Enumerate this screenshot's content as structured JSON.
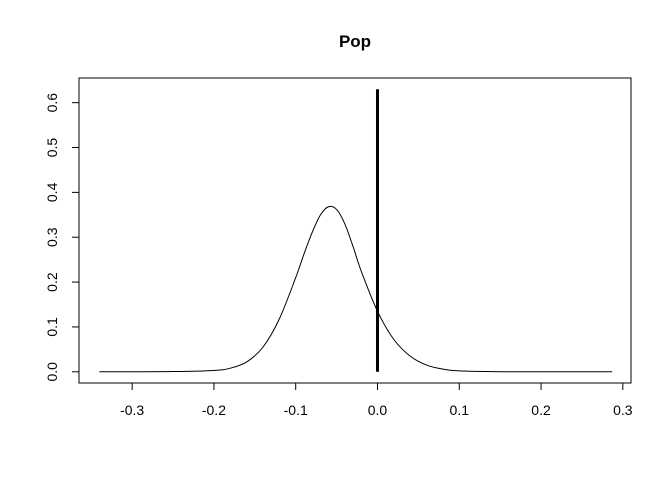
{
  "chart_data": {
    "type": "line",
    "title": "Pop",
    "xlabel": "",
    "ylabel": "",
    "xlim": [
      -0.365,
      0.31
    ],
    "ylim": [
      -0.025,
      0.655
    ],
    "x_ticks": [
      -0.3,
      -0.2,
      -0.1,
      0.0,
      0.1,
      0.2,
      0.3
    ],
    "x_tick_labels": [
      "-0.3",
      "-0.2",
      "-0.1",
      "0.0",
      "0.1",
      "0.2",
      "0.3"
    ],
    "y_ticks": [
      0.0,
      0.1,
      0.2,
      0.3,
      0.4,
      0.5,
      0.6
    ],
    "y_tick_labels": [
      "0.0",
      "0.1",
      "0.2",
      "0.3",
      "0.4",
      "0.5",
      "0.6"
    ],
    "grid": false,
    "series": [
      {
        "style": "density-curve",
        "color": "#000000",
        "x": [
          -0.34,
          -0.3,
          -0.25,
          -0.2,
          -0.18,
          -0.16,
          -0.14,
          -0.12,
          -0.1,
          -0.09,
          -0.08,
          -0.07,
          -0.06,
          -0.05,
          -0.04,
          -0.03,
          -0.02,
          0.0,
          0.02,
          0.04,
          0.06,
          0.08,
          0.1,
          0.15,
          0.2,
          0.287
        ],
        "y": [
          0.0,
          0.0,
          0.0005,
          0.003,
          0.008,
          0.022,
          0.055,
          0.118,
          0.21,
          0.262,
          0.31,
          0.349,
          0.368,
          0.362,
          0.33,
          0.28,
          0.225,
          0.135,
          0.072,
          0.035,
          0.015,
          0.006,
          0.002,
          0.0002,
          0.0,
          0.0
        ]
      }
    ],
    "annotations": [
      {
        "style": "vertical-line",
        "color": "#000000",
        "x": 0.0,
        "y_from": 0.0,
        "y_to": 0.63
      }
    ]
  }
}
